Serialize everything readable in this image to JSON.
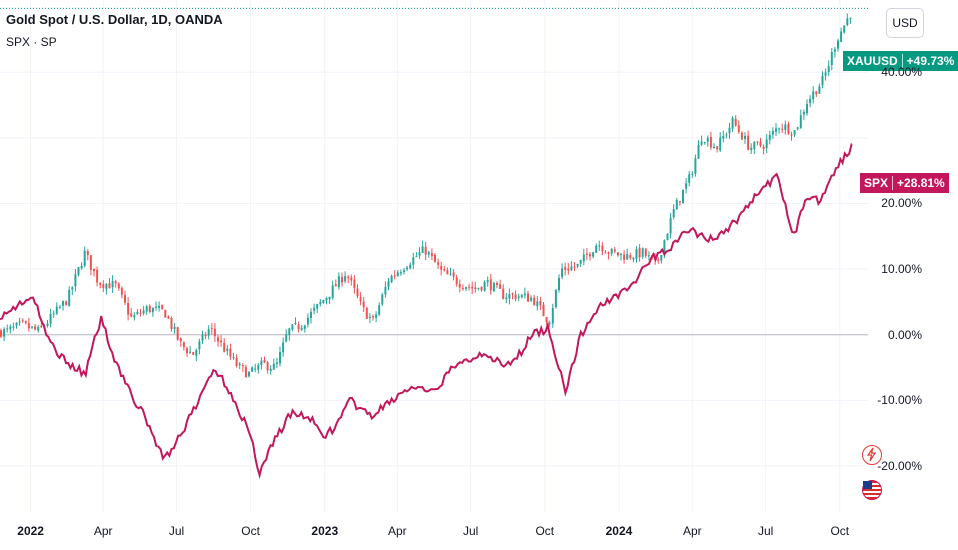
{
  "header": {
    "title": "Gold Spot / U.S. Dollar, 1D, OANDA",
    "subtitle": "SPX · SP",
    "currency": "USD"
  },
  "badges": {
    "xauusd": {
      "symbol": "XAUUSD",
      "value": "+49.73%"
    },
    "spx": {
      "symbol": "SPX",
      "value": "+28.81%"
    }
  },
  "colors": {
    "gold_up": "#26a69a",
    "gold_down": "#ef5350",
    "spx_line": "#c2185b",
    "xau_badge": "#089981",
    "spx_badge": "#c2185b",
    "grid": "#f0f3fa",
    "zero_line": "#b2b5be"
  },
  "icons": {
    "side_1": "lightning-alert-icon",
    "side_2": "us-flag-icon"
  },
  "chart_data": {
    "type": "line",
    "title": "Gold Spot / U.S. Dollar, 1D, OANDA",
    "x_axis_labels": [
      "2022",
      "Apr",
      "Jul",
      "Oct",
      "2023",
      "Apr",
      "Jul",
      "Oct",
      "2024",
      "Apr",
      "Jul",
      "Oct"
    ],
    "y_axis_labels": [
      "40.00%",
      "20.00%",
      "10.00%",
      "0.00%",
      "-10.00%",
      "-20.00%"
    ],
    "y_unit": "percent change",
    "ylim": [
      -27,
      51
    ],
    "grid": true,
    "series": [
      {
        "name": "XAUUSD",
        "style": "candlestick",
        "x": [
          "2021-12-01",
          "2021-12-20",
          "2022-01-10",
          "2022-01-28",
          "2022-02-15",
          "2022-03-08",
          "2022-03-25",
          "2022-04-15",
          "2022-05-05",
          "2022-05-25",
          "2022-06-15",
          "2022-07-05",
          "2022-07-20",
          "2022-08-10",
          "2022-08-30",
          "2022-09-15",
          "2022-09-28",
          "2022-10-15",
          "2022-10-31",
          "2022-11-15",
          "2022-12-01",
          "2022-12-20",
          "2023-01-10",
          "2023-01-26",
          "2023-02-15",
          "2023-03-01",
          "2023-03-20",
          "2023-04-13",
          "2023-05-04",
          "2023-05-25",
          "2023-06-15",
          "2023-07-05",
          "2023-07-20",
          "2023-08-10",
          "2023-08-25",
          "2023-09-15",
          "2023-10-05",
          "2023-10-20",
          "2023-11-10",
          "2023-12-04",
          "2023-12-20",
          "2024-01-10",
          "2024-01-30",
          "2024-02-15",
          "2024-03-08",
          "2024-03-28",
          "2024-04-12",
          "2024-04-30",
          "2024-05-20",
          "2024-06-10",
          "2024-06-28",
          "2024-07-17",
          "2024-08-05",
          "2024-08-20",
          "2024-09-10",
          "2024-09-26",
          "2024-10-16"
        ],
        "values": [
          0.5,
          1.5,
          0.5,
          3.0,
          5.5,
          12.5,
          8.0,
          7.5,
          2.5,
          4.0,
          3.5,
          -1.5,
          -3.0,
          1.0,
          -2.5,
          -5.0,
          -6.0,
          -4.5,
          -5.0,
          0.5,
          1.5,
          4.0,
          7.0,
          9.5,
          4.0,
          2.0,
          8.5,
          11.0,
          13.0,
          9.5,
          8.0,
          7.0,
          8.0,
          6.0,
          6.0,
          5.5,
          2.0,
          10.0,
          10.5,
          14.0,
          12.5,
          12.0,
          12.5,
          10.5,
          19.0,
          24.0,
          30.5,
          28.5,
          32.5,
          28.5,
          29.0,
          32.0,
          31.0,
          35.5,
          39.0,
          45.0,
          49.73
        ]
      },
      {
        "name": "SPX",
        "style": "line",
        "x": [
          "2021-12-01",
          "2021-12-20",
          "2022-01-05",
          "2022-01-20",
          "2022-02-05",
          "2022-02-25",
          "2022-03-10",
          "2022-03-29",
          "2022-04-15",
          "2022-05-05",
          "2022-05-20",
          "2022-06-16",
          "2022-07-05",
          "2022-07-25",
          "2022-08-16",
          "2022-09-05",
          "2022-09-30",
          "2022-10-12",
          "2022-10-30",
          "2022-11-20",
          "2022-12-13",
          "2022-12-28",
          "2023-01-15",
          "2023-02-02",
          "2023-02-25",
          "2023-03-10",
          "2023-03-30",
          "2023-04-20",
          "2023-05-15",
          "2023-06-05",
          "2023-06-25",
          "2023-07-20",
          "2023-08-10",
          "2023-08-25",
          "2023-09-15",
          "2023-10-05",
          "2023-10-27",
          "2023-11-15",
          "2023-12-05",
          "2023-12-28",
          "2024-01-20",
          "2024-02-10",
          "2024-03-01",
          "2024-03-28",
          "2024-04-19",
          "2024-05-10",
          "2024-05-30",
          "2024-06-20",
          "2024-07-16",
          "2024-08-05",
          "2024-08-20",
          "2024-09-06",
          "2024-09-20",
          "2024-10-16"
        ],
        "values": [
          3.0,
          5.0,
          5.5,
          0.0,
          -3.0,
          -5.0,
          -6.0,
          2.5,
          -3.5,
          -9.0,
          -12.0,
          -19.0,
          -15.5,
          -11.0,
          -5.0,
          -8.5,
          -15.0,
          -21.0,
          -16.0,
          -12.0,
          -12.5,
          -15.5,
          -14.0,
          -10.0,
          -12.5,
          -11.5,
          -9.5,
          -8.0,
          -9.0,
          -5.5,
          -4.0,
          -2.5,
          -5.0,
          -4.0,
          0.0,
          1.0,
          -8.5,
          0.0,
          4.0,
          6.0,
          8.0,
          11.5,
          13.0,
          16.0,
          14.5,
          15.5,
          18.0,
          21.5,
          24.0,
          15.0,
          21.0,
          20.5,
          24.0,
          28.81
        ]
      }
    ]
  }
}
